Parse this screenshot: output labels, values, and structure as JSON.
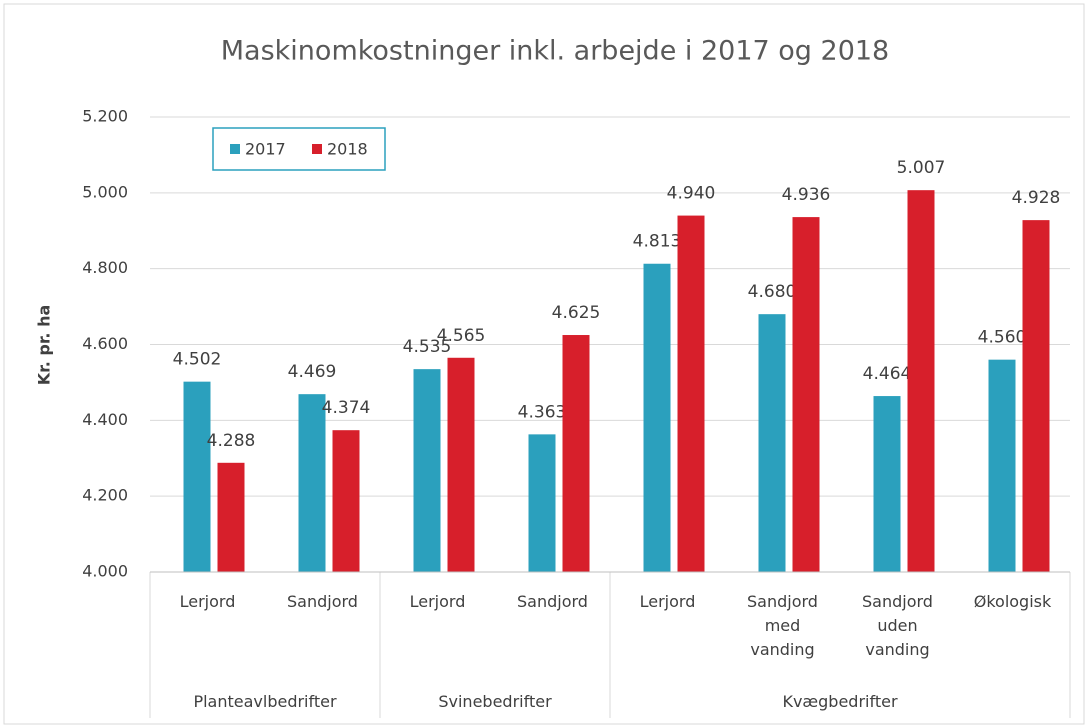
{
  "chart_data": {
    "type": "bar",
    "title": "Maskinomkostninger inkl. arbejde i 2017 og 2018",
    "y_label": "Kr. pr. ha",
    "groups": [
      {
        "name": "Planteavlbedrifter",
        "categories": [
          "Lerjord",
          "Sandjord"
        ]
      },
      {
        "name": "Svinebedrifter",
        "categories": [
          "Lerjord",
          "Sandjord"
        ]
      },
      {
        "name": "Kvægbedrifter",
        "categories": [
          "Lerjord",
          "Sandjord med vanding",
          "Sandjord uden vanding",
          "Økologisk"
        ]
      }
    ],
    "series": [
      {
        "name": "2017",
        "color": "#2ba0bd",
        "values": [
          4502,
          4469,
          4535,
          4363,
          4813,
          4680,
          4464,
          4560
        ],
        "value_labels": [
          "4.502",
          "4.469",
          "4.535",
          "4.363",
          "4.813",
          "4.680",
          "4.464",
          "4.560"
        ]
      },
      {
        "name": "2018",
        "color": "#d71f2b",
        "values": [
          4288,
          4374,
          4565,
          4625,
          4940,
          4936,
          5007,
          4928
        ],
        "value_labels": [
          "4.288",
          "4.374",
          "4.565",
          "4.625",
          "4.940",
          "4.936",
          "5.007",
          "4.928"
        ]
      }
    ],
    "ylim": [
      4000,
      5200
    ],
    "yticks": [
      {
        "value": 4000,
        "label": "4.000"
      },
      {
        "value": 4200,
        "label": "4.200"
      },
      {
        "value": 4400,
        "label": "4.400"
      },
      {
        "value": 4600,
        "label": "4.600"
      },
      {
        "value": 4800,
        "label": "4.800"
      },
      {
        "value": 5000,
        "label": "5.000"
      },
      {
        "value": 5200,
        "label": "5.200"
      }
    ],
    "grid": true,
    "legend": "top-left"
  }
}
